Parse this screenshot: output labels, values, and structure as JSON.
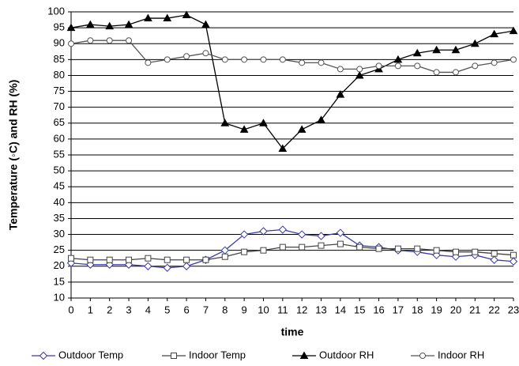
{
  "chart_data": {
    "type": "line",
    "y_label": "Temperature (◦C) and RH (%)",
    "x_label": "time",
    "x": [
      0,
      1,
      2,
      3,
      4,
      5,
      6,
      7,
      8,
      9,
      10,
      11,
      12,
      13,
      14,
      15,
      16,
      17,
      18,
      19,
      20,
      21,
      22,
      23
    ],
    "xlim": [
      0,
      23
    ],
    "xticks": [
      0,
      1,
      2,
      3,
      4,
      5,
      6,
      7,
      8,
      9,
      10,
      11,
      12,
      13,
      14,
      15,
      16,
      17,
      18,
      19,
      20,
      21,
      22,
      23
    ],
    "ylim": [
      10,
      100
    ],
    "yticks": [
      10,
      15,
      20,
      25,
      30,
      35,
      40,
      45,
      50,
      55,
      60,
      65,
      70,
      75,
      80,
      85,
      90,
      95,
      100
    ],
    "grid": true,
    "legend": "bottom",
    "series": [
      {
        "name": "Outdoor Temp",
        "color": "#3a3aa8",
        "marker": "diamond",
        "values": [
          21,
          20.5,
          20.5,
          20.5,
          20,
          19.5,
          20,
          22,
          25,
          30,
          31,
          31.5,
          30,
          29.5,
          30.5,
          26.5,
          26,
          25,
          24.5,
          23.5,
          23,
          23.5,
          22,
          21.5
        ]
      },
      {
        "name": "Indoor Temp",
        "color": "#444444",
        "marker": "square",
        "values": [
          22.5,
          22,
          22,
          22,
          22.5,
          22,
          22,
          22,
          23,
          24.5,
          25,
          26,
          26,
          26.5,
          27,
          26,
          25.5,
          25.5,
          25.5,
          25,
          24.5,
          24.5,
          24,
          23.5
        ]
      },
      {
        "name": "Outdoor RH",
        "color": "#000000",
        "marker": "triangle",
        "values": [
          95,
          96,
          95.5,
          96,
          98,
          98,
          99,
          96,
          65,
          63,
          65,
          57,
          63,
          66,
          74,
          80,
          82,
          85,
          87,
          88,
          88,
          90,
          93,
          94
        ]
      },
      {
        "name": "Indoor RH",
        "color": "#555555",
        "marker": "circle",
        "values": [
          90,
          91,
          91,
          91,
          84,
          85,
          86,
          87,
          85,
          85,
          85,
          85,
          84,
          84,
          82,
          82,
          83,
          83,
          83,
          81,
          81,
          83,
          84,
          85
        ]
      }
    ]
  }
}
